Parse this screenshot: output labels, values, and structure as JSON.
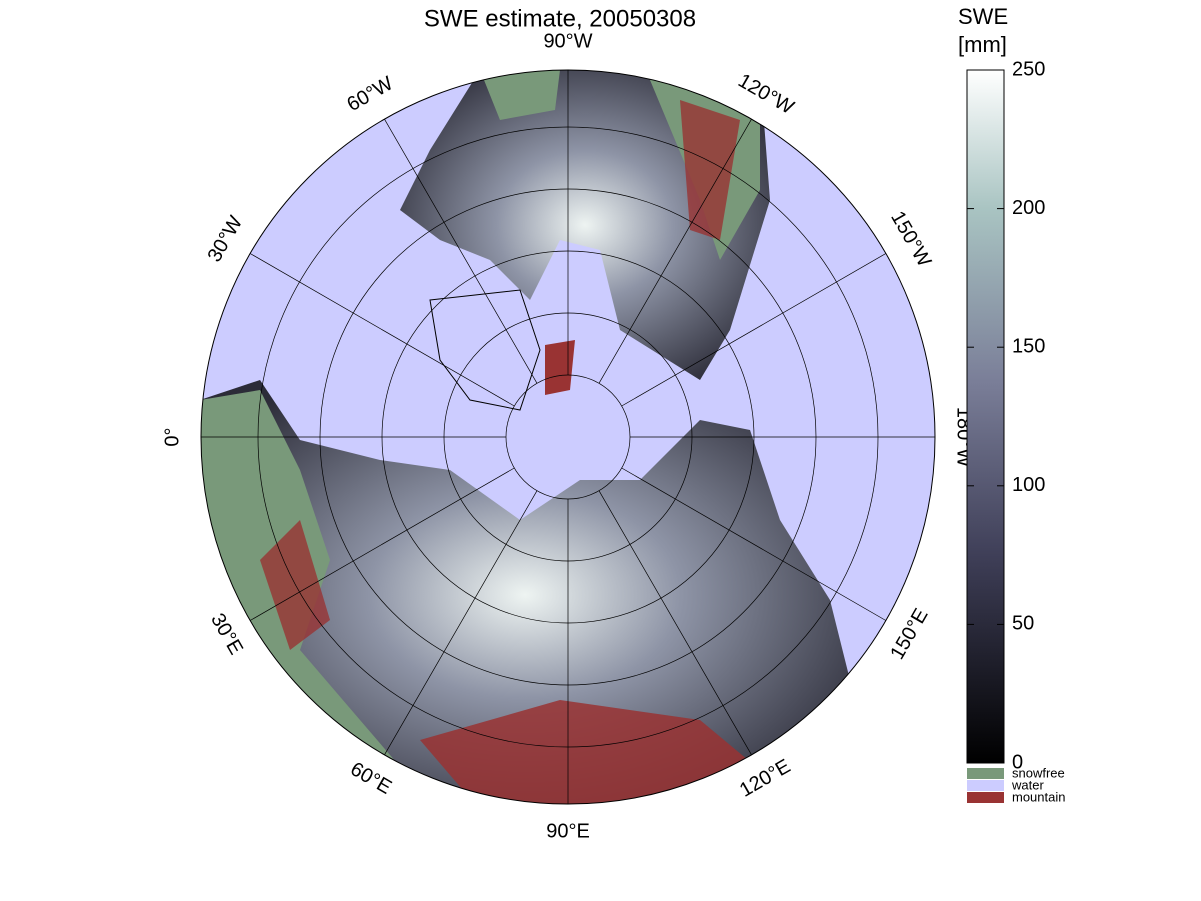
{
  "map": {
    "title": "SWE estimate, 20050308",
    "meridian_labels": [
      {
        "lon": -90,
        "label": "90°W"
      },
      {
        "lon": -120,
        "label": "120°W"
      },
      {
        "lon": -150,
        "label": "150°W"
      },
      {
        "lon": 180,
        "label": "180°W"
      },
      {
        "lon": 150,
        "label": "150°E"
      },
      {
        "lon": 120,
        "label": "120°E"
      },
      {
        "lon": 90,
        "label": "90°E"
      },
      {
        "lon": 60,
        "label": "60°E"
      },
      {
        "lon": 30,
        "label": "30°E"
      },
      {
        "lon": 0,
        "label": "0°"
      },
      {
        "lon": -30,
        "label": "30°W"
      },
      {
        "lon": -60,
        "label": "60°W"
      }
    ],
    "colorbar": {
      "label": [
        "SWE",
        "[mm]"
      ],
      "ylim": [
        0,
        250
      ],
      "yticks": [
        0,
        50,
        100,
        150,
        200,
        250
      ]
    },
    "legend": [
      {
        "name": "snowfree",
        "color": "#79997a"
      },
      {
        "name": "water",
        "color": "#ccccff"
      },
      {
        "name": "mountain",
        "color": "#993333"
      }
    ]
  }
}
